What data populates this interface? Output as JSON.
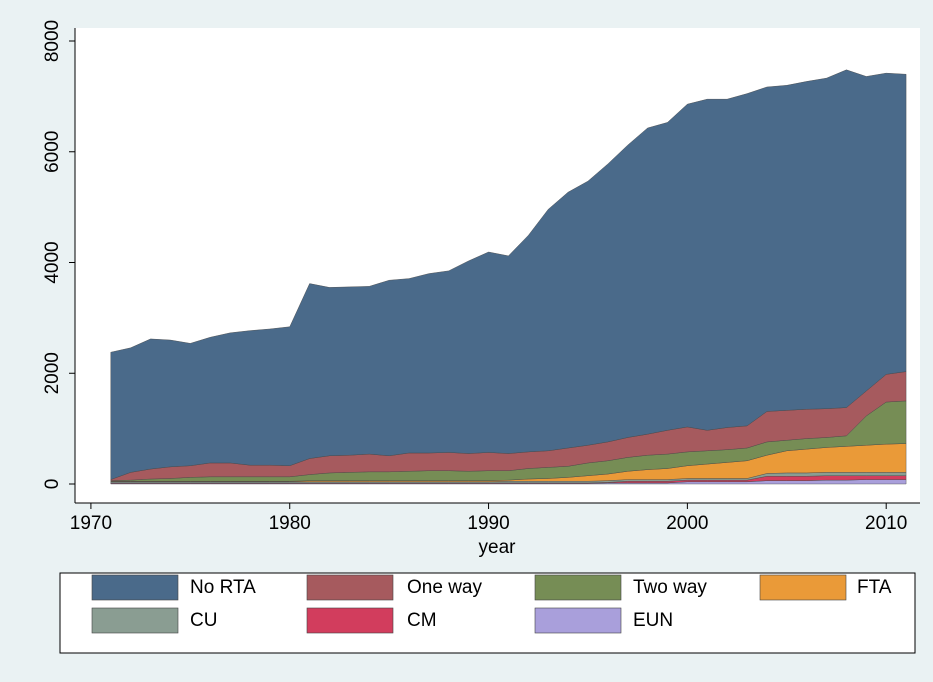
{
  "chart_data": {
    "type": "stacked-area",
    "x_label": "year",
    "x": [
      1971,
      1972,
      1973,
      1974,
      1975,
      1976,
      1977,
      1978,
      1979,
      1980,
      1981,
      1982,
      1983,
      1984,
      1985,
      1986,
      1987,
      1988,
      1989,
      1990,
      1991,
      1992,
      1993,
      1994,
      1995,
      1996,
      1997,
      1998,
      1999,
      2000,
      2001,
      2002,
      2003,
      2004,
      2005,
      2006,
      2007,
      2008,
      2009,
      2010,
      2011
    ],
    "xlim": [
      1969.2,
      2011.7
    ],
    "xticks": [
      1970,
      1980,
      1990,
      2000,
      2010
    ],
    "ylim": [
      -343,
      8235
    ],
    "yticks": [
      0,
      2000,
      4000,
      6000,
      8000
    ],
    "series": [
      {
        "name": "No RTA",
        "color": "#4a6a8a",
        "values": [
          2300,
          2250,
          2350,
          2290,
          2210,
          2270,
          2350,
          2430,
          2460,
          2510,
          3160,
          3040,
          3040,
          3030,
          3170,
          3150,
          3240,
          3280,
          3480,
          3620,
          3570,
          3910,
          4360,
          4620,
          4770,
          5020,
          5280,
          5530,
          5560,
          5830,
          5980,
          5930,
          6000,
          5860,
          5870,
          5920,
          5970,
          6100,
          5680,
          5440,
          5370
        ]
      },
      {
        "name": "One way",
        "color": "#a65a5e",
        "values": [
          20,
          140,
          180,
          210,
          210,
          250,
          250,
          210,
          210,
          200,
          290,
          310,
          310,
          320,
          290,
          330,
          320,
          330,
          320,
          330,
          310,
          300,
          300,
          330,
          320,
          340,
          360,
          380,
          430,
          450,
          370,
          400,
          400,
          550,
          540,
          530,
          520,
          510,
          450,
          500,
          530
        ]
      },
      {
        "name": "Two way",
        "color": "#768d55",
        "values": [
          10,
          20,
          40,
          50,
          70,
          80,
          80,
          80,
          80,
          80,
          110,
          140,
          150,
          160,
          160,
          170,
          180,
          180,
          170,
          180,
          170,
          190,
          200,
          200,
          230,
          240,
          250,
          260,
          260,
          250,
          240,
          230,
          230,
          240,
          190,
          190,
          180,
          190,
          530,
          760,
          770
        ]
      },
      {
        "name": "FTA",
        "color": "#ea9a38",
        "values": [
          10,
          10,
          10,
          10,
          10,
          10,
          10,
          10,
          10,
          10,
          20,
          20,
          20,
          20,
          20,
          20,
          20,
          20,
          20,
          20,
          20,
          40,
          50,
          70,
          100,
          120,
          150,
          180,
          200,
          230,
          260,
          290,
          320,
          330,
          400,
          430,
          450,
          470,
          490,
          510,
          520
        ]
      },
      {
        "name": "CU",
        "color": "#8a9d92",
        "values": [
          20,
          20,
          20,
          20,
          20,
          20,
          20,
          20,
          20,
          20,
          20,
          20,
          20,
          20,
          20,
          20,
          20,
          20,
          20,
          20,
          30,
          30,
          30,
          30,
          30,
          30,
          30,
          30,
          30,
          30,
          30,
          30,
          30,
          50,
          60,
          60,
          60,
          60,
          60,
          60,
          60
        ]
      },
      {
        "name": "CM",
        "color": "#d23d5d",
        "values": [
          10,
          10,
          10,
          10,
          10,
          10,
          10,
          10,
          10,
          10,
          10,
          10,
          10,
          10,
          10,
          10,
          10,
          10,
          10,
          10,
          10,
          10,
          10,
          10,
          10,
          10,
          30,
          30,
          30,
          30,
          30,
          30,
          30,
          80,
          80,
          80,
          80,
          80,
          70,
          70,
          70
        ]
      },
      {
        "name": "EUN",
        "color": "#a99fdb",
        "values": [
          10,
          10,
          10,
          10,
          10,
          10,
          10,
          10,
          10,
          10,
          10,
          10,
          10,
          10,
          10,
          10,
          10,
          10,
          10,
          10,
          10,
          10,
          10,
          10,
          10,
          20,
          20,
          20,
          20,
          40,
          40,
          40,
          40,
          60,
          60,
          60,
          70,
          70,
          80,
          80,
          80
        ]
      }
    ]
  }
}
